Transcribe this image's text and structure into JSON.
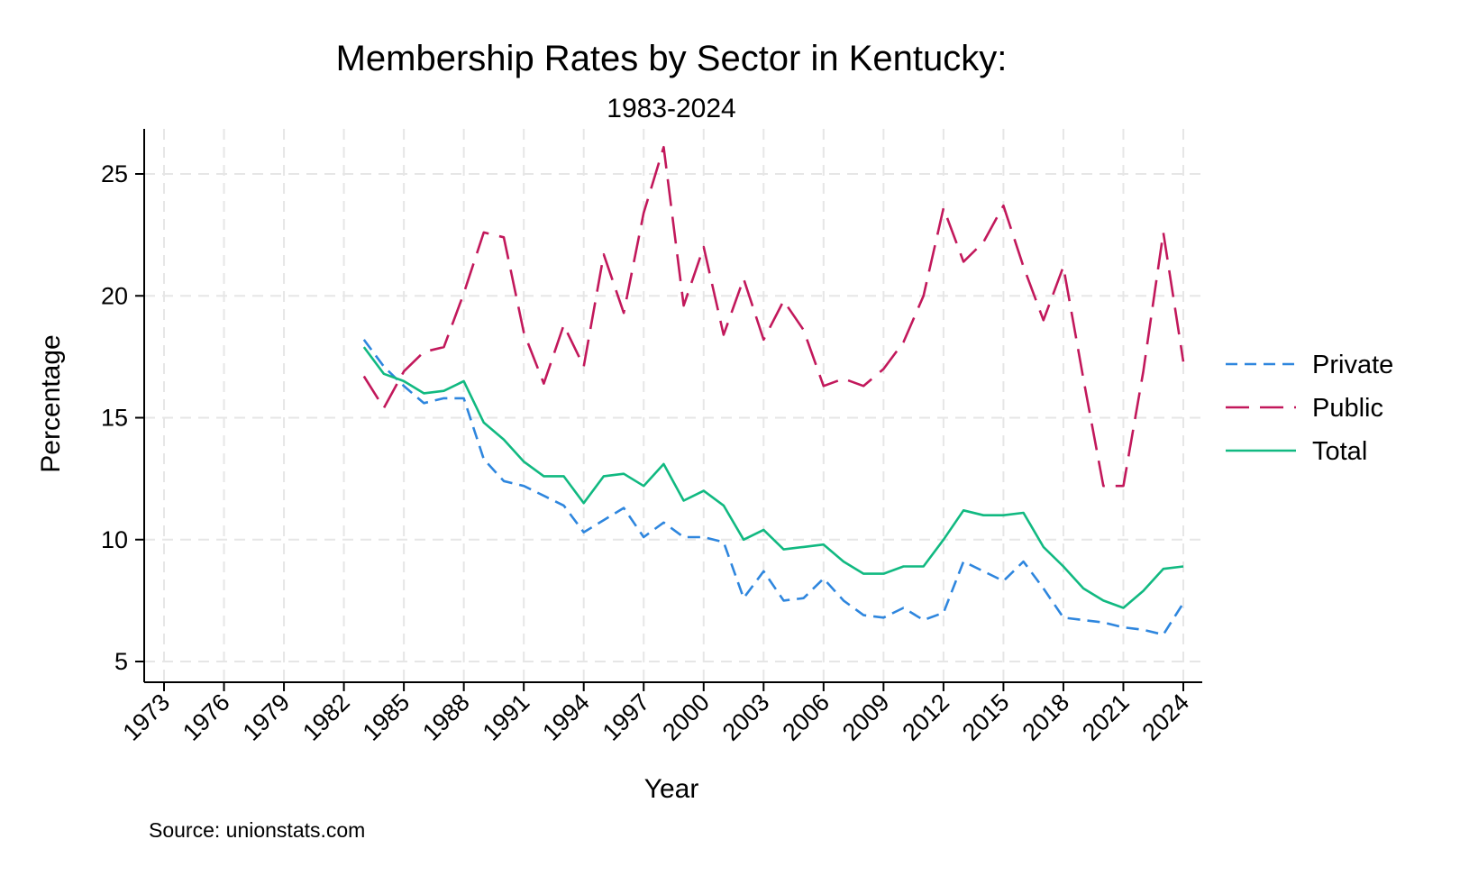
{
  "chart_data": {
    "type": "line",
    "title": "Membership Rates by Sector in Kentucky:",
    "subtitle": "1983-2024",
    "xlabel": "Year",
    "ylabel": "Percentage",
    "source": "Source: unionstats.com",
    "xlim": [
      1973,
      2024
    ],
    "ylim": [
      4.3,
      26.9
    ],
    "x_ticks": [
      1973,
      1976,
      1979,
      1982,
      1985,
      1988,
      1991,
      1994,
      1997,
      2000,
      2003,
      2006,
      2009,
      2012,
      2015,
      2018,
      2021,
      2024
    ],
    "y_ticks": [
      5,
      10,
      15,
      20,
      25
    ],
    "grid": true,
    "legend_position": "right",
    "x": [
      1983,
      1984,
      1985,
      1986,
      1987,
      1988,
      1989,
      1990,
      1991,
      1992,
      1993,
      1994,
      1995,
      1996,
      1997,
      1998,
      1999,
      2000,
      2001,
      2002,
      2003,
      2004,
      2005,
      2006,
      2007,
      2008,
      2009,
      2010,
      2011,
      2012,
      2013,
      2014,
      2015,
      2016,
      2017,
      2018,
      2019,
      2020,
      2021,
      2022,
      2023,
      2024
    ],
    "series": [
      {
        "name": "Private",
        "color": "#2e86de",
        "dash": "short",
        "values": [
          18.2,
          17.1,
          16.3,
          15.6,
          15.8,
          15.8,
          13.3,
          12.4,
          12.2,
          11.8,
          11.4,
          10.3,
          10.8,
          11.3,
          10.1,
          10.7,
          10.1,
          10.1,
          9.9,
          7.6,
          8.7,
          7.5,
          7.6,
          8.4,
          7.5,
          6.9,
          6.8,
          7.2,
          6.7,
          7.0,
          9.1,
          8.7,
          8.3,
          9.1,
          8.0,
          6.8,
          6.7,
          6.6,
          6.4,
          6.3,
          6.1,
          7.4
        ]
      },
      {
        "name": "Public",
        "color": "#c2185b",
        "dash": "long",
        "values": [
          16.7,
          15.4,
          16.9,
          17.7,
          17.9,
          20.1,
          22.6,
          22.4,
          18.5,
          16.4,
          18.8,
          17.1,
          21.7,
          19.3,
          23.4,
          26.1,
          19.6,
          22.0,
          18.4,
          20.7,
          18.2,
          19.8,
          18.6,
          16.3,
          16.6,
          16.3,
          17.0,
          18.1,
          20.0,
          23.6,
          21.4,
          22.2,
          23.7,
          21.2,
          19.0,
          21.2,
          16.6,
          12.2,
          12.2,
          16.9,
          22.6,
          17.3
        ]
      },
      {
        "name": "Total",
        "color": "#11b981",
        "dash": "solid",
        "values": [
          17.9,
          16.8,
          16.5,
          16.0,
          16.1,
          16.5,
          14.8,
          14.1,
          13.2,
          12.6,
          12.6,
          11.5,
          12.6,
          12.7,
          12.2,
          13.1,
          11.6,
          12.0,
          11.4,
          10.0,
          10.4,
          9.6,
          9.7,
          9.8,
          9.1,
          8.6,
          8.6,
          8.9,
          8.9,
          10.0,
          11.2,
          11.0,
          11.0,
          11.1,
          9.7,
          8.9,
          8.0,
          7.5,
          7.2,
          7.9,
          8.8,
          8.9
        ]
      }
    ]
  }
}
